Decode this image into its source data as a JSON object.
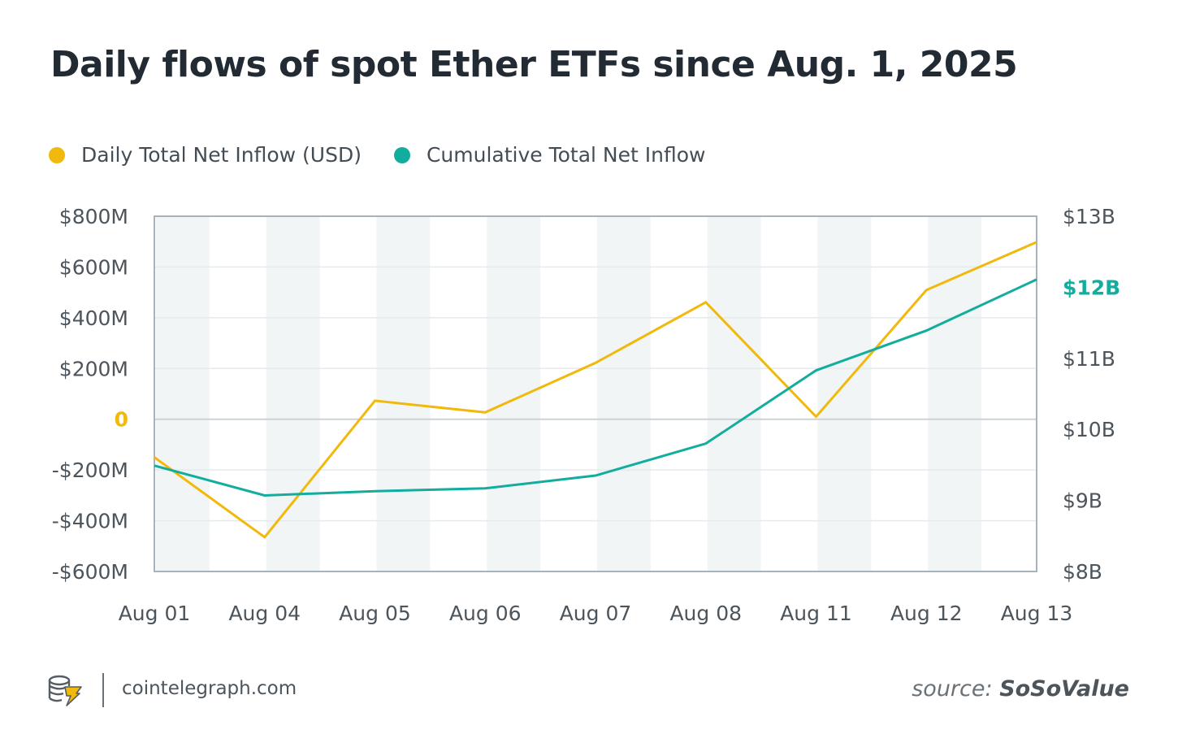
{
  "title": "Daily flows of spot Ether ETFs since Aug. 1, 2025",
  "legend": [
    {
      "label": "Daily Total Net Inflow (USD)",
      "color": "#f0b90b"
    },
    {
      "label": "Cumulative Total Net Inflow",
      "color": "#12ad9f"
    }
  ],
  "chart_data": {
    "type": "line",
    "categories": [
      "Aug 01",
      "Aug 04",
      "Aug 05",
      "Aug 06",
      "Aug 07",
      "Aug 08",
      "Aug 11",
      "Aug 12",
      "Aug 13"
    ],
    "series": [
      {
        "name": "Daily Total Net Inflow (USD)",
        "axis": "left",
        "color": "#f0b90b",
        "values": [
          -150,
          -465,
          73,
          27,
          222,
          461,
          10,
          509,
          698
        ]
      },
      {
        "name": "Cumulative Total Net Inflow",
        "axis": "right",
        "color": "#12ad9f",
        "values": [
          9.49,
          9.07,
          9.13,
          9.17,
          9.35,
          9.8,
          10.83,
          11.39,
          12.11
        ]
      }
    ],
    "left_axis": {
      "ylim": [
        -600,
        800
      ],
      "ticks": [
        800,
        600,
        400,
        200,
        0,
        -200,
        -400,
        -600
      ],
      "tick_labels": [
        "$800M",
        "$600M",
        "$400M",
        "$200M",
        "0",
        "-$200M",
        "-$400M",
        "-$600M"
      ],
      "highlight_label": "0",
      "highlight_color": "#f0b90b"
    },
    "right_axis": {
      "ylim": [
        8,
        13
      ],
      "ticks": [
        13,
        12,
        11,
        10,
        9,
        8
      ],
      "tick_labels": [
        "$13B",
        "$12B",
        "$11B",
        "$10B",
        "$9B",
        "$8B"
      ],
      "highlight_label": "$12B",
      "highlight_color": "#12ad9f"
    },
    "grid": true,
    "legend_position": "top-left",
    "band_color": "#f2f5f6"
  },
  "footer": {
    "site": "cointelegraph.com",
    "source_prefix": "source:",
    "source_name": "SoSoValue"
  },
  "icons": {
    "logo": "cointelegraph-logo-icon"
  }
}
